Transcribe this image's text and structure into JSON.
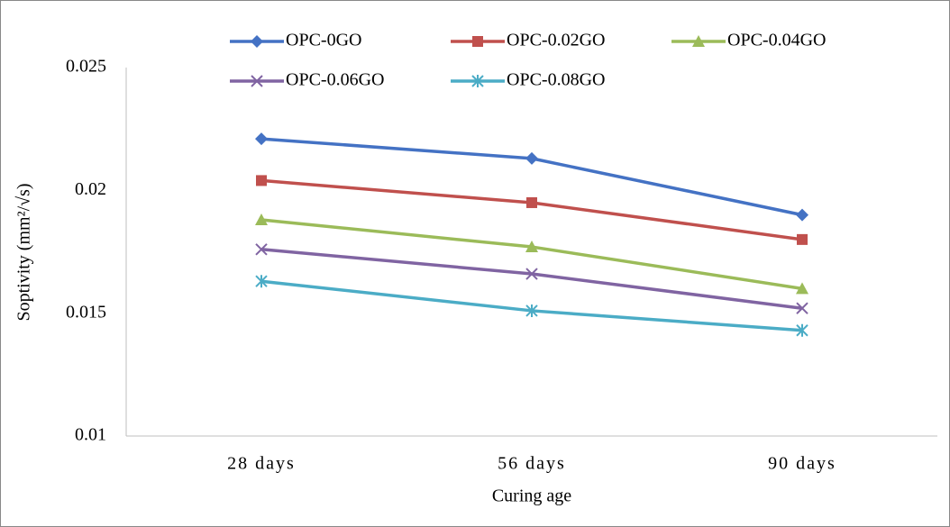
{
  "chart_data": {
    "type": "line",
    "categories": [
      "28 days",
      "56 days",
      "90 days"
    ],
    "x_label": "Curing age",
    "y_label": "Soptivity (mm²/√s)",
    "ylim": [
      0.01,
      0.025
    ],
    "yticks": [
      0.01,
      0.015,
      0.02,
      0.025
    ],
    "grid": false,
    "legend": "top",
    "series": [
      {
        "name": "OPC-0GO",
        "color": "#4472c4",
        "marker": "diamond",
        "values": [
          0.0221,
          0.0213,
          0.019
        ]
      },
      {
        "name": "OPC-0.02GO",
        "color": "#c0504d",
        "marker": "square",
        "values": [
          0.0204,
          0.0195,
          0.018
        ]
      },
      {
        "name": "OPC-0.04GO",
        "color": "#9bbb59",
        "marker": "triangle",
        "values": [
          0.0188,
          0.0177,
          0.016
        ]
      },
      {
        "name": "OPC-0.06GO",
        "color": "#8064a2",
        "marker": "x",
        "values": [
          0.0176,
          0.0166,
          0.0152
        ]
      },
      {
        "name": "OPC-0.08GO",
        "color": "#4bacc6",
        "marker": "star",
        "values": [
          0.0163,
          0.0151,
          0.0143
        ]
      }
    ]
  }
}
